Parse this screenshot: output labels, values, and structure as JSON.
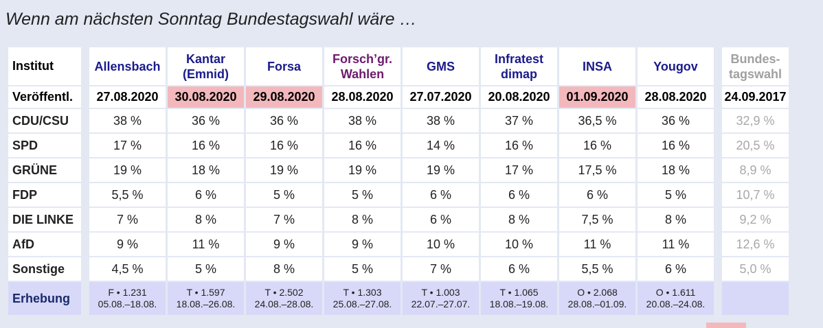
{
  "title": "Wenn am nächsten Sonntag Bundestagswahl wäre …",
  "colors": {
    "highlight": "#f3b8bc",
    "institute_link": "#1a1a8c",
    "institute_alt": "#6d1a6d",
    "reference": "#a0a0a0",
    "survey_row": "#d8d8f8",
    "background": "#e3e8f3"
  },
  "table": {
    "header_label": "Institut",
    "institutes": [
      {
        "line1": "Allensbach",
        "line2": ""
      },
      {
        "line1": "Kantar",
        "line2": "(Emnid)"
      },
      {
        "line1": "Forsa",
        "line2": ""
      },
      {
        "line1": "Forsch’gr.",
        "line2": "Wahlen"
      },
      {
        "line1": "GMS",
        "line2": ""
      },
      {
        "line1": "Infratest",
        "line2": "dimap"
      },
      {
        "line1": "INSA",
        "line2": ""
      },
      {
        "line1": "Yougov",
        "line2": ""
      }
    ],
    "reference": {
      "line1": "Bundes-",
      "line2": "tagswahl"
    },
    "date_label": "Veröffentl.",
    "dates": [
      "27.08.2020",
      "30.08.2020",
      "29.08.2020",
      "28.08.2020",
      "27.07.2020",
      "20.08.2020",
      "01.09.2020",
      "28.08.2020"
    ],
    "date_highlight": [
      false,
      true,
      true,
      false,
      false,
      false,
      true,
      false
    ],
    "reference_date": "24.09.2017",
    "parties": [
      {
        "name": "CDU/CSU",
        "values": [
          "38 %",
          "36 %",
          "36 %",
          "38 %",
          "38 %",
          "37 %",
          "36,5 %",
          "36 %"
        ],
        "reference": "32,9 %"
      },
      {
        "name": "SPD",
        "values": [
          "17 %",
          "16 %",
          "16 %",
          "16 %",
          "14 %",
          "16 %",
          "16 %",
          "16 %"
        ],
        "reference": "20,5 %"
      },
      {
        "name": "GRÜNE",
        "values": [
          "19 %",
          "18 %",
          "19 %",
          "19 %",
          "19 %",
          "17 %",
          "17,5 %",
          "18 %"
        ],
        "reference": "8,9 %"
      },
      {
        "name": "FDP",
        "values": [
          "5,5 %",
          "6 %",
          "5 %",
          "5 %",
          "6 %",
          "6 %",
          "6 %",
          "5 %"
        ],
        "reference": "10,7 %"
      },
      {
        "name": "DIE LINKE",
        "values": [
          "7 %",
          "8 %",
          "7 %",
          "8 %",
          "6 %",
          "8 %",
          "7,5 %",
          "8 %"
        ],
        "reference": "9,2 %"
      },
      {
        "name": "AfD",
        "values": [
          "9 %",
          "11 %",
          "9 %",
          "9 %",
          "10 %",
          "10 %",
          "11 %",
          "11 %"
        ],
        "reference": "12,6 %"
      },
      {
        "name": "Sonstige",
        "values": [
          "4,5 %",
          "5 %",
          "8 %",
          "5 %",
          "7 %",
          "6 %",
          "5,5 %",
          "6 %"
        ],
        "reference": "5,0 %"
      }
    ],
    "survey_label": "Erhebung",
    "surveys": [
      {
        "method": "F • 1.231",
        "period": "05.08.–18.08."
      },
      {
        "method": "T • 1.597",
        "period": "18.08.–26.08."
      },
      {
        "method": "T • 2.502",
        "period": "24.08.–28.08."
      },
      {
        "method": "T • 1.303",
        "period": "25.08.–27.08."
      },
      {
        "method": "T • 1.003",
        "period": "22.07.–27.07."
      },
      {
        "method": "T • 1.065",
        "period": "18.08.–19.08."
      },
      {
        "method": "O • 2.068",
        "period": "28.08.–01.09."
      },
      {
        "method": "O • 1.611",
        "period": "20.08.–24.08."
      }
    ]
  }
}
